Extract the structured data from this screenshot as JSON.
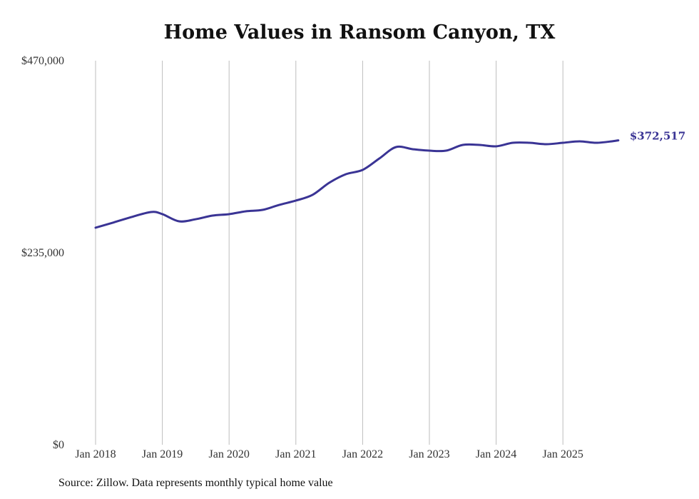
{
  "chart_data": {
    "type": "line",
    "title": "Home Values in Ransom Canyon, TX",
    "source": "Source: Zillow. Data represents monthly typical home value",
    "xlabel": "",
    "ylabel": "",
    "ylim": [
      0,
      470000
    ],
    "yticks": [
      0,
      235000,
      470000
    ],
    "ytick_labels": [
      "$0",
      "$235,000",
      "$470,000"
    ],
    "xticks": [
      2018,
      2019,
      2020,
      2021,
      2022,
      2023,
      2024,
      2025
    ],
    "xtick_labels": [
      "Jan 2018",
      "Jan 2019",
      "Jan 2020",
      "Jan 2021",
      "Jan 2022",
      "Jan 2023",
      "Jan 2024",
      "Jan 2025"
    ],
    "grid": "vertical",
    "line_color": "#3a3495",
    "end_label": "$372,517",
    "series": [
      {
        "name": "Typical home value",
        "x": [
          2018.0,
          2018.25,
          2018.5,
          2018.83,
          2019.0,
          2019.25,
          2019.5,
          2019.75,
          2020.0,
          2020.25,
          2020.5,
          2020.75,
          2021.0,
          2021.25,
          2021.5,
          2021.75,
          2022.0,
          2022.25,
          2022.5,
          2022.75,
          2023.0,
          2023.25,
          2023.5,
          2023.75,
          2024.0,
          2024.25,
          2024.5,
          2024.75,
          2025.0,
          2025.25,
          2025.5,
          2025.75,
          2025.83
        ],
        "values": [
          265600,
          271500,
          277800,
          284800,
          282200,
          273400,
          276000,
          280400,
          282200,
          285700,
          287400,
          293500,
          298800,
          305800,
          320600,
          331100,
          336300,
          350300,
          364300,
          361700,
          359900,
          359900,
          366900,
          366900,
          365200,
          369500,
          369500,
          367800,
          369500,
          371300,
          369500,
          371500,
          372517
        ]
      }
    ]
  }
}
